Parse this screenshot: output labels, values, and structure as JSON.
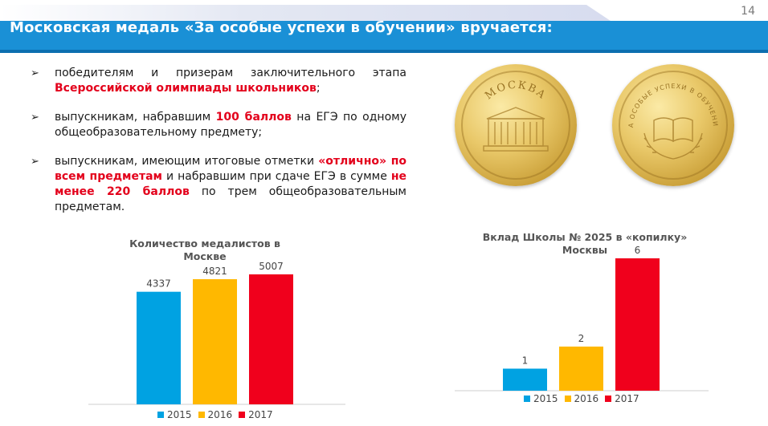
{
  "page_number": "14",
  "slide_title": "Московская медаль «За особые успехи в обучении» вручается:",
  "bullets": [
    {
      "parts": [
        {
          "text": "победителям и призерам заключительного этапа ",
          "hl": false
        },
        {
          "text": "Всероссийской олимпиады школьников",
          "hl": true
        },
        {
          "text": ";",
          "hl": false
        }
      ]
    },
    {
      "parts": [
        {
          "text": "выпускникам, набравшим ",
          "hl": false
        },
        {
          "text": "100 баллов",
          "hl": true
        },
        {
          "text": " на ЕГЭ по одному общеобразовательному предмету;",
          "hl": false
        }
      ]
    },
    {
      "parts": [
        {
          "text": "выпускникам, имеющим итоговые отметки ",
          "hl": false
        },
        {
          "text": "«отлично» по всем предметам",
          "hl": true
        },
        {
          "text": " и набравшим при сдаче ЕГЭ в сумме ",
          "hl": false
        },
        {
          "text": "не менее 220 баллов",
          "hl": true
        },
        {
          "text": " по трем общеобразовательным предметам.",
          "hl": false
        }
      ]
    }
  ],
  "bullet_marker": "➢",
  "medals": {
    "front_text": "МОСКВА",
    "back_text": "ЗА ОСОБЫЕ УСПЕХИ В ОБУЧЕНИИ"
  },
  "colors": {
    "title_bar": "#1a90d6",
    "accent_red": "#e3001b",
    "series": [
      "#00a2e2",
      "#ffb800",
      "#f0001c"
    ]
  },
  "chart_data": [
    {
      "type": "bar",
      "title": "Количество медалистов в Москве",
      "categories": [
        "2015",
        "2016",
        "2017"
      ],
      "values": [
        4337,
        4821,
        5007
      ],
      "data_labels": [
        "4337",
        "4821",
        "5007"
      ],
      "ylim": [
        0,
        5500
      ],
      "grid": false,
      "legend": "bottom"
    },
    {
      "type": "bar",
      "title": "Вклад Школы № 2025 в «копилку» Москвы",
      "categories": [
        "2015",
        "2016",
        "2017"
      ],
      "values": [
        1,
        2,
        6
      ],
      "data_labels": [
        "1",
        "2",
        "6"
      ],
      "grid": false,
      "legend": "bottom"
    }
  ]
}
